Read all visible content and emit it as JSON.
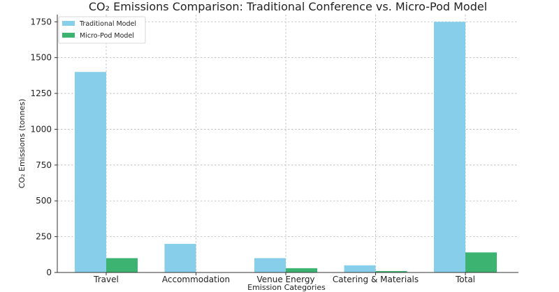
{
  "chart_data": {
    "type": "bar",
    "title": "CO₂ Emissions Comparison: Traditional Conference vs. Micro-Pod Model",
    "xlabel": "Emission Categories",
    "ylabel": "CO₂ Emissions (tonnes)",
    "categories": [
      "Travel",
      "Accommodation",
      "Venue Energy",
      "Catering & Materials",
      "Total"
    ],
    "series": [
      {
        "name": "Traditional Model",
        "color": "#87ceeb",
        "values": [
          1400,
          200,
          100,
          50,
          1750
        ]
      },
      {
        "name": "Micro-Pod Model",
        "color": "#3cb371",
        "values": [
          100,
          0,
          30,
          10,
          140
        ]
      }
    ],
    "ylim": [
      0,
      1800
    ],
    "yticks": [
      0,
      250,
      500,
      750,
      1000,
      1250,
      1500,
      1750
    ],
    "grid": true,
    "legend_position": "top-left"
  }
}
